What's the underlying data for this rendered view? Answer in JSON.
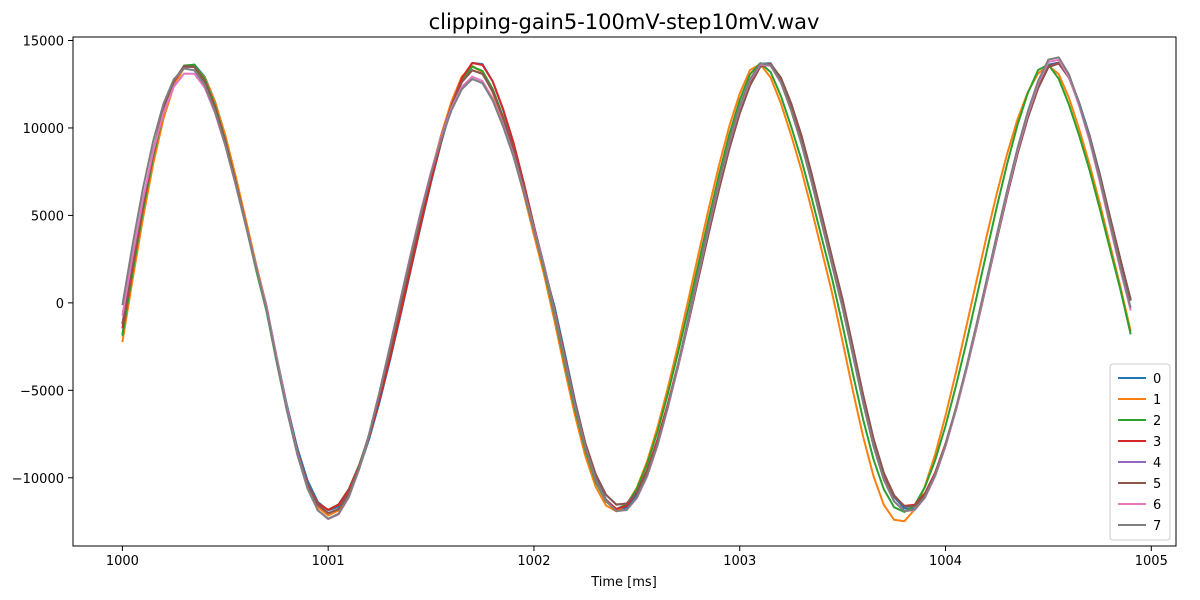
{
  "chart_data": {
    "type": "line",
    "title": "clipping-gain5-100mV-step10mV.wav",
    "xlabel": "Time [ms]",
    "ylabel": "",
    "xlim": [
      999.76,
      1005.12
    ],
    "ylim": [
      -13900,
      15200
    ],
    "xticks": [
      1000,
      1001,
      1002,
      1003,
      1004,
      1005
    ],
    "xtick_labels": [
      "1000",
      "1001",
      "1002",
      "1003",
      "1004",
      "1005"
    ],
    "yticks": [
      -10000,
      -5000,
      0,
      5000,
      10000,
      15000
    ],
    "ytick_labels": [
      "−10000",
      "−5000",
      "0",
      "5000",
      "10000",
      "15000"
    ],
    "grid": false,
    "legend": "lower-right",
    "x": [
      1000.0,
      1000.05,
      1000.1,
      1000.15,
      1000.2,
      1000.25,
      1000.3,
      1000.35,
      1000.4,
      1000.45,
      1000.5,
      1000.55,
      1000.6,
      1000.65,
      1000.7,
      1000.75,
      1000.8,
      1000.85,
      1000.9,
      1000.95,
      1001.0,
      1001.05,
      1001.1,
      1001.15,
      1001.2,
      1001.25,
      1001.3,
      1001.35,
      1001.4,
      1001.45,
      1001.5,
      1001.55,
      1001.6,
      1001.65,
      1001.7,
      1001.75,
      1001.8,
      1001.85,
      1001.9,
      1001.95,
      1002.0,
      1002.05,
      1002.1,
      1002.15,
      1002.2,
      1002.25,
      1002.3,
      1002.35,
      1002.4,
      1002.45,
      1002.5,
      1002.55,
      1002.6,
      1002.65,
      1002.7,
      1002.75,
      1002.8,
      1002.85,
      1002.9,
      1002.95,
      1003.0,
      1003.05,
      1003.1,
      1003.15,
      1003.2,
      1003.25,
      1003.3,
      1003.35,
      1003.4,
      1003.45,
      1003.5,
      1003.55,
      1003.6,
      1003.65,
      1003.7,
      1003.75,
      1003.8,
      1003.85,
      1003.9,
      1003.95,
      1004.0,
      1004.05,
      1004.1,
      1004.15,
      1004.2,
      1004.25,
      1004.3,
      1004.35,
      1004.4,
      1004.45,
      1004.5,
      1004.55,
      1004.6,
      1004.65,
      1004.7,
      1004.75,
      1004.8,
      1004.85,
      1004.9
    ],
    "series": [
      {
        "name": "0",
        "color": "#1f77b4",
        "values": [
          -1802,
          1849,
          5309,
          8368,
          10839,
          12584,
          13520,
          13622,
          12926,
          11521,
          9551,
          7195,
          4654,
          2125,
          -163,
          -3104,
          -5864,
          -8284,
          -10169,
          -11383,
          -11867,
          -11655,
          -10837,
          -9507,
          -7752,
          -5658,
          -3309,
          -789,
          1811,
          4406,
          6905,
          9210,
          11216,
          12799,
          13720,
          13650,
          12657,
          11039,
          9136,
          6842,
          4362,
          1938,
          -201,
          -2873,
          -5620,
          -8063,
          -9979,
          -11244,
          -11810,
          -11702,
          -10966,
          -9690,
          -7972,
          -5902,
          -3570,
          -1061,
          1540,
          4140,
          6657,
          8986,
          11017,
          12630,
          13673,
          13697,
          12812,
          11241,
          9358,
          7091,
          4623,
          2200,
          -39,
          -2639,
          -5377,
          -7839,
          -9788,
          -11102,
          -11748,
          -11740,
          -11089,
          -9867,
          -8189,
          -6143,
          -3830,
          -1335,
          1263,
          3872,
          6407,
          8762,
          10823,
          12469,
          13617,
          13738,
          12957,
          11436,
          9577,
          7337,
          4883,
          2462,
          202
        ]
      },
      {
        "name": "1",
        "color": "#ff7f0e",
        "values": [
          -2244,
          1367,
          4846,
          7969,
          10535,
          12395,
          13451,
          13577,
          12879,
          11506,
          9575,
          7252,
          4735,
          2224,
          -154,
          -3176,
          -6029,
          -8527,
          -10466,
          -11696,
          -12154,
          -11876,
          -10957,
          -9500,
          -7603,
          -5370,
          -2897,
          -282,
          2366,
          4973,
          7437,
          9660,
          11538,
          12949,
          13544,
          13176,
          12003,
          10315,
          8437,
          6237,
          3877,
          1581,
          -1031,
          -3820,
          -6461,
          -8766,
          -10513,
          -11583,
          -11911,
          -11553,
          -10575,
          -9061,
          -7135,
          -4890,
          -2443,
          169,
          2820,
          5436,
          7905,
          10117,
          11957,
          13309,
          13645,
          12887,
          11404,
          9574,
          7570,
          5296,
          2911,
          511,
          -2212,
          -5035,
          -7662,
          -9906,
          -11544,
          -12402,
          -12482,
          -11811,
          -10488,
          -8658,
          -6459,
          -4010,
          -1413,
          1221,
          3826,
          6300,
          8550,
          10492,
          12045,
          13117,
          13560,
          13077,
          11714,
          9915,
          7907,
          5667,
          3304,
          924,
          -1617
        ]
      },
      {
        "name": "2",
        "color": "#2ca02c",
        "values": [
          -1883,
          1793,
          5282,
          8366,
          10864,
          12632,
          13573,
          13614,
          12803,
          11296,
          9291,
          6945,
          4417,
          1877,
          -457,
          -3409,
          -6185,
          -8599,
          -10411,
          -11485,
          -11831,
          -11519,
          -10641,
          -9285,
          -7523,
          -5429,
          -3085,
          -576,
          2006,
          4574,
          7036,
          9293,
          11247,
          12753,
          13501,
          13258,
          12222,
          10645,
          8801,
          6578,
          4181,
          1850,
          -703,
          -3468,
          -6122,
          -8454,
          -10241,
          -11368,
          -11784,
          -11520,
          -10636,
          -9220,
          -7390,
          -5234,
          -2857,
          -337,
          2265,
          4866,
          7362,
          9637,
          11581,
          13066,
          13713,
          13198,
          11827,
          10072,
          8161,
          5965,
          3640,
          1338,
          -1289,
          -4067,
          -6684,
          -8950,
          -10655,
          -11681,
          -11958,
          -11554,
          -10532,
          -8991,
          -7042,
          -4782,
          -2326,
          280,
          2928,
          5533,
          7986,
          10177,
          11995,
          13315,
          13616,
          12809,
          11325,
          9540,
          7571,
          5360,
          3049,
          761,
          -1804
        ]
      },
      {
        "name": "3",
        "color": "#d62728",
        "values": [
          -1457,
          2167,
          5577,
          8572,
          10973,
          12646,
          13503,
          13491,
          12662,
          11164,
          9203,
          6927,
          4489,
          2071,
          -242,
          -3246,
          -6073,
          -8526,
          -10369,
          -11464,
          -11834,
          -11546,
          -10686,
          -9345,
          -7602,
          -5521,
          -3187,
          -680,
          1909,
          4495,
          6985,
          9281,
          11282,
          12861,
          13716,
          13601,
          12650,
          11085,
          9181,
          6890,
          4411,
          1984,
          -364,
          -3112,
          -5856,
          -8271,
          -10113,
          -11289,
          -11778,
          -11610,
          -10837,
          -9549,
          -7840,
          -5797,
          -3509,
          -1046,
          1510,
          4069,
          6551,
          8857,
          10880,
          12500,
          13577,
          13675,
          12812,
          11235,
          9356,
          7111,
          4671,
          2272,
          -123,
          -2814,
          -5545,
          -7973,
          -9838,
          -11047,
          -11608,
          -11544,
          -10888,
          -9696,
          -8046,
          -6041,
          -3784,
          -1345,
          1194,
          3749,
          6238,
          8564,
          10621,
          12301,
          13509,
          13718,
          12902,
          11344,
          9497,
          7288,
          4878,
          2487,
          123
        ]
      },
      {
        "name": "4",
        "color": "#9467bd",
        "values": [
          -1216,
          2373,
          5737,
          8688,
          11050,
          12685,
          13508,
          13472,
          12628,
          11123,
          9164,
          6895,
          4468,
          2066,
          -199,
          -3171,
          -5984,
          -8451,
          -10355,
          -11556,
          -12026,
          -11782,
          -10888,
          -9419,
          -7483,
          -5205,
          -2712,
          -106,
          2510,
          5049,
          7418,
          9534,
          11301,
          12626,
          13298,
          13088,
          12081,
          10564,
          8799,
          6651,
          4357,
          2093,
          -391,
          -3061,
          -5711,
          -8042,
          -9810,
          -10974,
          -11537,
          -11478,
          -10836,
          -9658,
          -8011,
          -5984,
          -3666,
          -1155,
          1440,
          4035,
          6527,
          8822,
          10822,
          12420,
          13497,
          13640,
          12862,
          11384,
          9549,
          7328,
          4916,
          2528,
          184,
          -2533,
          -5284,
          -7778,
          -9731,
          -11017,
          -11642,
          -11613,
          -10975,
          -9792,
          -8150,
          -6146,
          -3878,
          -1432,
          1116,
          3678,
          6175,
          8510,
          10577,
          12271,
          13479,
          13692,
          12874,
          11317,
          9476,
          7273,
          4869,
          2482,
          134
        ]
      },
      {
        "name": "5",
        "color": "#8c564b",
        "values": [
          -1200,
          2397,
          5764,
          8716,
          11078,
          12712,
          13535,
          13497,
          12652,
          11146,
          9187,
          6918,
          4491,
          2086,
          -181,
          -3154,
          -5969,
          -8440,
          -10349,
          -11556,
          -12032,
          -11794,
          -10905,
          -9440,
          -7506,
          -5230,
          -2737,
          -129,
          2489,
          5031,
          7404,
          9524,
          11296,
          12626,
          13301,
          13093,
          12088,
          10573,
          8810,
          6665,
          4372,
          2107,
          -375,
          -3046,
          -5698,
          -8032,
          -9801,
          -10966,
          -11530,
          -11471,
          -10829,
          -9651,
          -8004,
          -5976,
          -3658,
          -1146,
          1450,
          4047,
          6540,
          8836,
          10838,
          12437,
          13515,
          13659,
          12881,
          11403,
          9568,
          7347,
          4935,
          2546,
          201,
          -2515,
          -5266,
          -7761,
          -9716,
          -11004,
          -11631,
          -11604,
          -10969,
          -9788,
          -8148,
          -6146,
          -3880,
          -1436,
          1111,
          3673,
          6170,
          8504,
          10572,
          12266,
          13475,
          13687,
          12869,
          11313,
          9473,
          7271,
          4867,
          2481,
          134
        ]
      },
      {
        "name": "6",
        "color": "#e377c2",
        "values": [
          -724,
          2733,
          5937,
          8686,
          10864,
          12360,
          13108,
          13098,
          12307,
          10856,
          8977,
          6779,
          4428,
          2100,
          -216,
          -3156,
          -6027,
          -8596,
          -10596,
          -11867,
          -12363,
          -12097,
          -11124,
          -9539,
          -7470,
          -5066,
          -2490,
          143,
          2744,
          5227,
          7509,
          9509,
          11152,
          12357,
          12929,
          12678,
          11672,
          10186,
          8472,
          6414,
          4218,
          2044,
          -552,
          -3253,
          -5928,
          -8300,
          -10114,
          -11317,
          -11905,
          -11843,
          -11165,
          -9922,
          -8182,
          -6045,
          -3608,
          -986,
          1705,
          4370,
          6896,
          9190,
          11163,
          12717,
          13630,
          13548,
          12587,
          10978,
          9086,
          6873,
          4492,
          2134,
          -265,
          -2968,
          -5713,
          -8174,
          -10096,
          -11343,
          -11918,
          -11843,
          -11150,
          -9907,
          -8205,
          -6148,
          -3843,
          -1362,
          1213,
          3803,
          6330,
          8700,
          10806,
          12541,
          13772,
          13895,
          12922,
          11239,
          9253,
          6907,
          4380,
          1890,
          -437
        ]
      },
      {
        "name": "7",
        "color": "#7f7f7f",
        "values": [
          -132,
          3366,
          6560,
          9282,
          11395,
          12790,
          13398,
          13292,
          12449,
          10955,
          9027,
          6777,
          4379,
          2013,
          -349,
          -3322,
          -6168,
          -8674,
          -10630,
          -11867,
          -12337,
          -12058,
          -11082,
          -9505,
          -7458,
          -5079,
          -2530,
          78,
          2656,
          5123,
          7392,
          9383,
          11018,
          12223,
          12800,
          12557,
          11561,
          10083,
          8372,
          6320,
          4129,
          1956,
          -619,
          -3306,
          -5972,
          -8339,
          -10141,
          -11331,
          -11905,
          -11829,
          -11133,
          -9871,
          -8113,
          -5963,
          -3516,
          -887,
          1806,
          4468,
          6989,
          9276,
          11241,
          12786,
          13688,
          13594,
          12620,
          10996,
          9090,
          6863,
          4470,
          2103,
          -295,
          -2991,
          -5730,
          -8188,
          -10105,
          -11342,
          -11902,
          -11811,
          -11098,
          -9835,
          -8115,
          -6043,
          -3725,
          -1235,
          1349,
          3944,
          6473,
          8843,
          10948,
          12681,
          13910,
          14034,
          13063,
          11384,
          9402,
          7058,
          4532,
          2043,
          -293
        ]
      }
    ]
  }
}
